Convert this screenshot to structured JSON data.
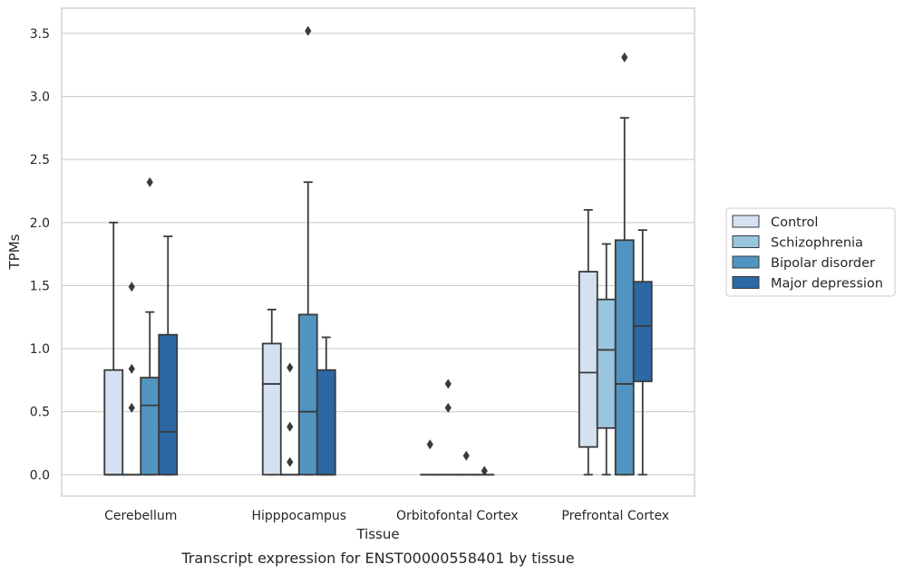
{
  "caption": "Transcript expression for ENST00000558401 by tissue",
  "chart_data": {
    "type": "box",
    "xlabel": "Tissue",
    "ylabel": "TPMs",
    "ylim": [
      -0.17,
      3.7
    ],
    "yticks": [
      "0.0",
      "0.5",
      "1.0",
      "1.5",
      "2.0",
      "2.5",
      "3.0",
      "3.5"
    ],
    "ytick_values": [
      0,
      0.5,
      1.0,
      1.5,
      2.0,
      2.5,
      3.0,
      3.5
    ],
    "grid": true,
    "legend_position": "right",
    "categories": [
      "Cerebellum",
      "Hipppocampus",
      "Orbitofontal Cortex",
      "Prefrontal Cortex"
    ],
    "series": [
      {
        "name": "Control",
        "color": "#d3e1f0",
        "boxes": [
          {
            "min": 0,
            "q1": 0,
            "median": 0,
            "q3": 0.83,
            "max": 2.0,
            "outliers": []
          },
          {
            "min": 0,
            "q1": 0,
            "median": 0.72,
            "q3": 1.04,
            "max": 1.31,
            "outliers": []
          },
          {
            "min": 0,
            "q1": 0,
            "median": 0,
            "q3": 0,
            "max": 0,
            "outliers": [
              0.24
            ]
          },
          {
            "min": 0,
            "q1": 0.22,
            "median": 0.81,
            "q3": 1.61,
            "max": 2.1,
            "outliers": []
          }
        ]
      },
      {
        "name": "Schizophrenia",
        "color": "#9ac5de",
        "boxes": [
          {
            "min": 0,
            "q1": 0,
            "median": 0,
            "q3": 0,
            "max": 0,
            "outliers": [
              0.53,
              0.84,
              1.49
            ]
          },
          {
            "min": 0,
            "q1": 0,
            "median": 0,
            "q3": 0,
            "max": 0,
            "outliers": [
              0.1,
              0.38,
              0.85
            ]
          },
          {
            "min": 0,
            "q1": 0,
            "median": 0,
            "q3": 0,
            "max": 0,
            "outliers": [
              0.53,
              0.72
            ]
          },
          {
            "min": 0,
            "q1": 0.37,
            "median": 0.99,
            "q3": 1.39,
            "max": 1.83,
            "outliers": []
          }
        ]
      },
      {
        "name": "Bipolar disorder",
        "color": "#5194c1",
        "boxes": [
          {
            "min": 0,
            "q1": 0,
            "median": 0.55,
            "q3": 0.77,
            "max": 1.29,
            "outliers": [
              2.32
            ]
          },
          {
            "min": 0,
            "q1": 0,
            "median": 0.5,
            "q3": 1.27,
            "max": 2.32,
            "outliers": [
              3.52
            ]
          },
          {
            "min": 0,
            "q1": 0,
            "median": 0,
            "q3": 0,
            "max": 0,
            "outliers": [
              0.15
            ]
          },
          {
            "min": 0,
            "q1": 0,
            "median": 0.72,
            "q3": 1.86,
            "max": 2.83,
            "outliers": [
              3.31
            ]
          }
        ]
      },
      {
        "name": "Major depression",
        "color": "#2b68a4",
        "boxes": [
          {
            "min": 0,
            "q1": 0,
            "median": 0.34,
            "q3": 1.11,
            "max": 1.89,
            "outliers": []
          },
          {
            "min": 0,
            "q1": 0,
            "median": 0,
            "q3": 0.83,
            "max": 1.09,
            "outliers": []
          },
          {
            "min": 0,
            "q1": 0,
            "median": 0,
            "q3": 0,
            "max": 0,
            "outliers": [
              0.03
            ]
          },
          {
            "min": 0,
            "q1": 0.74,
            "median": 1.18,
            "q3": 1.53,
            "max": 1.94,
            "outliers": []
          }
        ]
      }
    ]
  }
}
